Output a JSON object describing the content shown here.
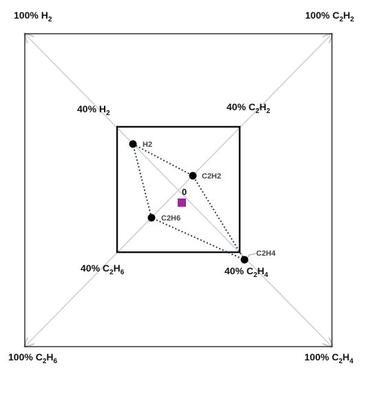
{
  "corners": {
    "top_left": {
      "prefix": "100% ",
      "base": "H",
      "sub": "2"
    },
    "top_right": {
      "prefix": "100% ",
      "base": "C",
      "sub1": "2",
      "mid": "H",
      "sub2": "2"
    },
    "bottom_left": {
      "prefix": "100% ",
      "base": "C",
      "sub1": "2",
      "mid": "H",
      "sub2": "6"
    },
    "bottom_right": {
      "prefix": "100% ",
      "base": "C",
      "sub1": "2",
      "mid": "H",
      "sub2": "4"
    }
  },
  "inner": {
    "top_left": {
      "prefix": "40% ",
      "base": "H",
      "sub": "2"
    },
    "top_right": {
      "prefix": "40% ",
      "base": "C",
      "sub1": "2",
      "mid": "H",
      "sub2": "2"
    },
    "bottom_left": {
      "prefix": "40% ",
      "base": "C",
      "sub1": "2",
      "mid": "H",
      "sub2": "6"
    },
    "bottom_right": {
      "prefix": "40% ",
      "base": "C",
      "sub1": "2",
      "mid": "H",
      "sub2": "4"
    }
  },
  "origin_label": "0",
  "points": [
    {
      "label": "H2"
    },
    {
      "label": "C2H2"
    },
    {
      "label": "C2H6"
    },
    {
      "label": "C2H4"
    }
  ],
  "centroid_color": "#a0279a",
  "polygon_color": "#1a3a5a"
}
